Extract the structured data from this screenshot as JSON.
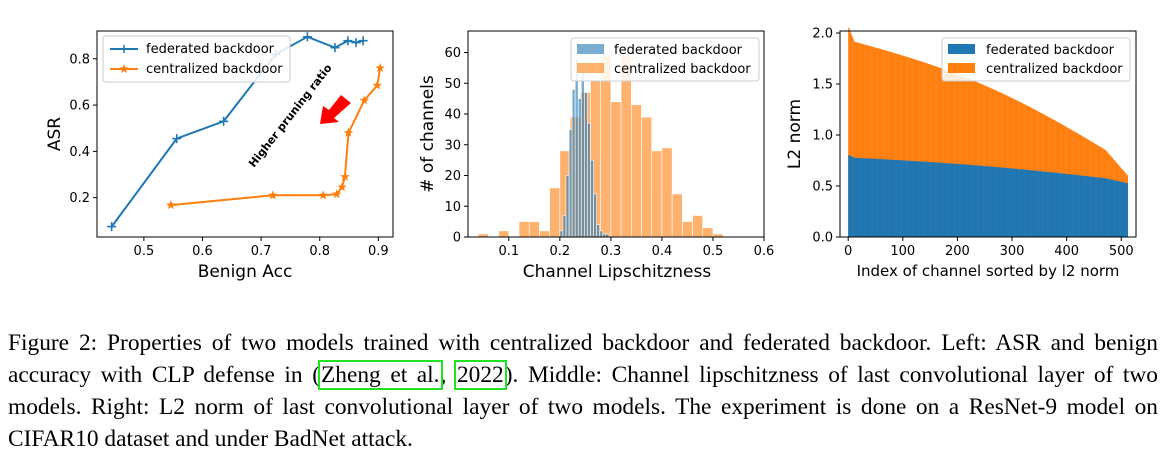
{
  "chart_data": [
    {
      "type": "line",
      "xlabel": "Benign Acc",
      "ylabel": "ASR",
      "xlim": [
        0.42,
        0.925
      ],
      "ylim": [
        0.03,
        0.92
      ],
      "xticks": [
        0.5,
        0.6,
        0.7,
        0.8,
        0.9
      ],
      "yticks": [
        0.2,
        0.4,
        0.6,
        0.8
      ],
      "series": [
        {
          "name": "federated backdoor",
          "color": "#1f77b4",
          "marker": "plus",
          "x": [
            0.445,
            0.556,
            0.636,
            0.725,
            0.779,
            0.826,
            0.848,
            0.862,
            0.874
          ],
          "y": [
            0.075,
            0.455,
            0.53,
            0.82,
            0.895,
            0.848,
            0.878,
            0.87,
            0.878
          ]
        },
        {
          "name": "centralized backdoor",
          "color": "#ff7f0e",
          "marker": "star",
          "x": [
            0.546,
            0.72,
            0.806,
            0.829,
            0.838,
            0.843,
            0.849,
            0.876,
            0.898,
            0.903
          ],
          "y": [
            0.168,
            0.21,
            0.21,
            0.215,
            0.245,
            0.29,
            0.48,
            0.62,
            0.685,
            0.76
          ]
        }
      ],
      "legend": "upper-left",
      "annotation": "Higher pruning ratio",
      "arrow_color": "#ff0000"
    },
    {
      "type": "histogram",
      "xlabel": "Channel Lipschitzness",
      "ylabel": "# of channels",
      "xlim": [
        0.02,
        0.6
      ],
      "ylim": [
        0,
        67
      ],
      "xticks": [
        0.1,
        0.2,
        0.3,
        0.4,
        0.5,
        0.6
      ],
      "yticks": [
        0,
        10,
        20,
        30,
        40,
        50,
        60
      ],
      "series": [
        {
          "name": "centralized backdoor",
          "color": "#ff7f0e",
          "opacity": 0.6,
          "bin_start": 0.04,
          "bin_width": 0.02,
          "values": [
            1,
            0,
            2,
            0,
            5,
            5,
            2,
            16,
            28,
            39,
            47,
            51,
            59,
            44,
            59,
            43,
            39,
            28,
            29,
            14,
            5,
            7,
            3,
            1
          ]
        },
        {
          "name": "federated backdoor",
          "color": "#1f77b4",
          "opacity": 0.6,
          "bin_start": 0.2,
          "bin_width": 0.006,
          "values": [
            2,
            7,
            20,
            35,
            48,
            58,
            45,
            54,
            47,
            37,
            25,
            14,
            4,
            2,
            1,
            1
          ]
        }
      ],
      "legend": "upper-right"
    },
    {
      "type": "bar",
      "xlabel": "Index of channel sorted by l2 norm",
      "ylabel": "L2 norm",
      "xlim": [
        -15,
        527
      ],
      "ylim": [
        0,
        2.02
      ],
      "xticks": [
        0,
        100,
        200,
        300,
        400,
        500
      ],
      "yticks": [
        0.0,
        0.5,
        1.0,
        1.5,
        2.0
      ],
      "ytick_labels": [
        "0.0",
        "0.5",
        "1.0",
        "1.5",
        "2.0"
      ],
      "n_channels": 512,
      "series": [
        {
          "name": "centralized backdoor",
          "color": "#ff7f0e",
          "start": 1.93,
          "end": 0.72,
          "shape": "decreasing"
        },
        {
          "name": "federated backdoor",
          "color": "#1f77b4",
          "start": 0.78,
          "end": 0.55,
          "shape": "decreasing"
        }
      ],
      "legend": "upper-right"
    }
  ],
  "caption": {
    "before": "Figure 2: Properties of two models trained with centralized backdoor and federated backdoor. Left: ASR and benign accuracy with CLP defense in (",
    "cite_author": "Zheng et al.",
    "cite_sep": ", ",
    "cite_year": "2022",
    "after": "). Middle: Channel lipschitzness of last convolutional layer of two models. Right: L2 norm of last convolutional layer of two models. The experiment is done on a ResNet-9 model on CIFAR10 dataset and under BadNet attack."
  }
}
